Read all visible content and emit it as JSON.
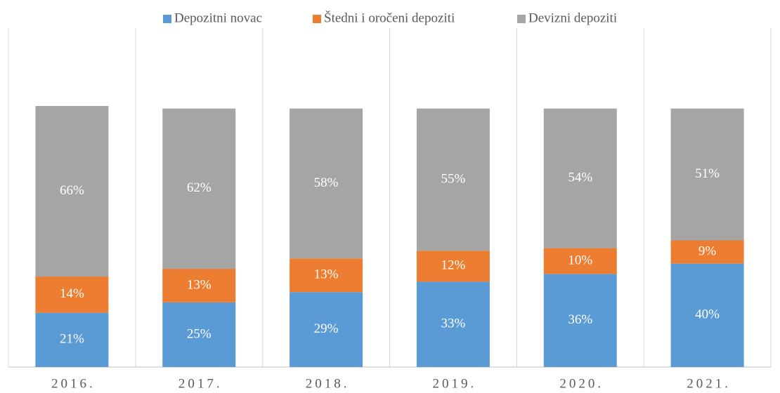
{
  "chart_data": {
    "type": "stacked_bar",
    "categories": [
      "2016.",
      "2017.",
      "2018.",
      "2019.",
      "2020.",
      "2021."
    ],
    "series": [
      {
        "name": "Depozitni novac",
        "color": "#5b9bd5",
        "values": [
          21,
          25,
          29,
          33,
          36,
          40
        ],
        "value_labels": [
          "21%",
          "25%",
          "29%",
          "33%",
          "36%",
          "40%"
        ]
      },
      {
        "name": "Štedni i oročeni depoziti",
        "color": "#ed7d31",
        "values": [
          14,
          13,
          13,
          12,
          10,
          9
        ],
        "value_labels": [
          "14%",
          "13%",
          "13%",
          "12%",
          "10%",
          "9%"
        ]
      },
      {
        "name": "Devizni depoziti",
        "color": "#a5a5a5",
        "values": [
          66,
          62,
          58,
          55,
          54,
          51
        ],
        "value_labels": [
          "66%",
          "62%",
          "58%",
          "55%",
          "54%",
          "51%"
        ]
      }
    ],
    "legend": "top"
  }
}
